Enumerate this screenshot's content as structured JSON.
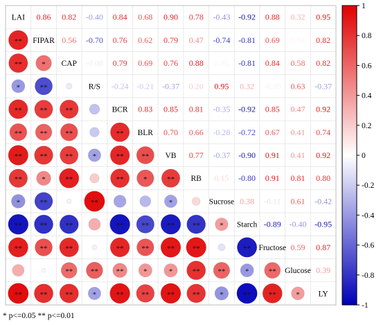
{
  "chart_data": {
    "type": "heatmap",
    "subtype": "mixed-correlation-matrix",
    "variables": [
      "LAI",
      "FIPAR",
      "CAP",
      "R/S",
      "BCR",
      "BLR",
      "VB",
      "RB",
      "Sucrose",
      "Starch",
      "Fructose",
      "Glucose",
      "LY"
    ],
    "upper_triangle": "coefficient values (colored text)",
    "lower_triangle": "circles sized and colored by coefficient, with significance stars",
    "matrix": [
      [
        1,
        0.86,
        0.82,
        -0.4,
        0.84,
        0.68,
        0.9,
        0.78,
        -0.43,
        -0.92,
        0.88,
        0.32,
        0.95
      ],
      [
        0.86,
        1,
        0.56,
        -0.7,
        0.76,
        0.62,
        0.79,
        0.47,
        -0.74,
        -0.81,
        0.69,
        0.04,
        0.82
      ],
      [
        0.82,
        0.56,
        1,
        -0.08,
        0.79,
        0.69,
        0.76,
        0.88,
        0.05,
        -0.81,
        0.84,
        0.58,
        0.82
      ],
      [
        -0.4,
        -0.7,
        -0.08,
        1,
        -0.24,
        -0.21,
        -0.37,
        0.2,
        0.95,
        0.32,
        -0.05,
        0.63,
        -0.37
      ],
      [
        0.84,
        0.76,
        0.79,
        -0.24,
        1,
        0.83,
        0.85,
        0.81,
        -0.35,
        -0.92,
        0.85,
        0.47,
        0.92
      ],
      [
        0.68,
        0.62,
        0.69,
        -0.21,
        0.83,
        1,
        0.7,
        0.66,
        -0.28,
        -0.72,
        0.67,
        0.41,
        0.74
      ],
      [
        0.9,
        0.79,
        0.76,
        -0.37,
        0.85,
        0.7,
        1,
        0.77,
        -0.37,
        -0.9,
        0.91,
        0.41,
        0.92
      ],
      [
        0.78,
        0.47,
        0.88,
        0.2,
        0.81,
        0.66,
        0.77,
        1,
        0.15,
        -0.8,
        0.91,
        0.81,
        0.8
      ],
      [
        -0.43,
        -0.74,
        0.05,
        0.95,
        -0.35,
        -0.28,
        -0.37,
        0.15,
        1,
        0.38,
        -0.11,
        0.61,
        -0.42
      ],
      [
        -0.92,
        -0.81,
        -0.81,
        0.32,
        -0.92,
        -0.72,
        -0.9,
        -0.8,
        0.38,
        1,
        -0.89,
        -0.4,
        -0.95
      ],
      [
        0.88,
        0.69,
        0.84,
        -0.05,
        0.85,
        0.67,
        0.91,
        0.91,
        -0.11,
        -0.89,
        1,
        0.59,
        0.87
      ],
      [
        0.32,
        0.04,
        0.58,
        0.63,
        0.47,
        0.41,
        0.41,
        0.81,
        0.61,
        -0.4,
        0.59,
        1,
        0.39
      ],
      [
        0.95,
        0.82,
        0.82,
        -0.37,
        0.92,
        0.74,
        0.92,
        0.8,
        -0.42,
        -0.95,
        0.87,
        0.39,
        1
      ]
    ],
    "upper_labels": [
      [
        null,
        "0.86",
        "0.82",
        "-0.40",
        "0.84",
        "0.68",
        "0.90",
        "0.78",
        "-0.43",
        "-0.92",
        "0.88",
        "0.32",
        "0.95"
      ],
      [
        null,
        null,
        "0.56",
        "-0.70",
        "0.76",
        "0.62",
        "0.79",
        "0.47",
        "-0.74",
        "-0.81",
        "0.69",
        "0.04",
        "0.82"
      ],
      [
        null,
        null,
        null,
        "-0.08",
        "0.79",
        "0.69",
        "0.76",
        "0.88",
        "0.05",
        "-0.81",
        "0.84",
        "0.58",
        "0.82"
      ],
      [
        null,
        null,
        null,
        null,
        "-0.24",
        "-0.21",
        "-0.37",
        "0.20",
        "0.95",
        "0.32",
        "-0.05",
        "0.63",
        "-0.37"
      ],
      [
        null,
        null,
        null,
        null,
        null,
        "0.83",
        "0.85",
        "0.81",
        "-0.35",
        "-0.92",
        "0.85",
        "0.47",
        "0.92"
      ],
      [
        null,
        null,
        null,
        null,
        null,
        null,
        "0.70",
        "0.66",
        "-0.28",
        "-0.72",
        "0.67",
        "0.41",
        "0.74"
      ],
      [
        null,
        null,
        null,
        null,
        null,
        null,
        null,
        "0.77",
        "-0.37",
        "-0.90",
        "0.91",
        "0.41",
        "0.92"
      ],
      [
        null,
        null,
        null,
        null,
        null,
        null,
        null,
        null,
        "0.15",
        "-0.80",
        "0.91",
        "0.81",
        "0.80"
      ],
      [
        null,
        null,
        null,
        null,
        null,
        null,
        null,
        null,
        null,
        "0.38",
        "-0.11",
        "0.61",
        "-0.42"
      ],
      [
        null,
        null,
        null,
        null,
        null,
        null,
        null,
        null,
        null,
        null,
        "-0.89",
        "-0.40",
        "-0.95"
      ],
      [
        null,
        null,
        null,
        null,
        null,
        null,
        null,
        null,
        null,
        null,
        null,
        "0.59",
        "0.87"
      ],
      [
        null,
        null,
        null,
        null,
        null,
        null,
        null,
        null,
        null,
        null,
        null,
        null,
        "0.39"
      ],
      [
        null,
        null,
        null,
        null,
        null,
        null,
        null,
        null,
        null,
        null,
        null,
        null,
        null
      ]
    ],
    "significance": [
      [
        "",
        "",
        "",
        "",
        "",
        "",
        "",
        "",
        "",
        "",
        "",
        "",
        ""
      ],
      [
        "**",
        "",
        "",
        "",
        "",
        "",
        "",
        "",
        "",
        "",
        "",
        "",
        ""
      ],
      [
        "**",
        "*",
        "",
        "",
        "",
        "",
        "",
        "",
        "",
        "",
        "",
        "",
        ""
      ],
      [
        "*",
        "**",
        "",
        "",
        "",
        "",
        "",
        "",
        "",
        "",
        "",
        "",
        ""
      ],
      [
        "**",
        "**",
        "**",
        "",
        "",
        "",
        "",
        "",
        "",
        "",
        "",
        "",
        ""
      ],
      [
        "**",
        "**",
        "**",
        "",
        "**",
        "",
        "",
        "",
        "",
        "",
        "",
        "",
        ""
      ],
      [
        "**",
        "**",
        "**",
        "*",
        "**",
        "**",
        "",
        "",
        "",
        "",
        "",
        "",
        ""
      ],
      [
        "**",
        "*",
        "**",
        "",
        "**",
        "*",
        "**",
        "",
        "",
        "",
        "",
        "",
        ""
      ],
      [
        "*",
        "**",
        "",
        "**",
        "",
        "",
        "*",
        "",
        "",
        "",
        "",
        "",
        ""
      ],
      [
        "**",
        "**",
        "**",
        "",
        "**",
        "**",
        "**",
        "**",
        "*",
        "",
        "",
        "",
        ""
      ],
      [
        "**",
        "**",
        "**",
        "",
        "**",
        "**",
        "**",
        "**",
        "",
        "**",
        "",
        "",
        ""
      ],
      [
        "",
        "",
        "**",
        "**",
        "**",
        "*",
        "*",
        "**",
        "**",
        "*",
        "**",
        "",
        ""
      ],
      [
        "**",
        "**",
        "**",
        "*",
        "**",
        "**",
        "**",
        "**",
        "*",
        "**",
        "**",
        "*",
        ""
      ]
    ],
    "colorbar": {
      "min": -1,
      "max": 1,
      "ticks": [
        "1",
        "0.8",
        "0.6",
        "0.4",
        "0.2",
        "0",
        "-0.2",
        "-0.4",
        "-0.6",
        "-0.8",
        "-1"
      ]
    },
    "colors": {
      "positive": "#E00000",
      "negative": "#0000B8",
      "neutral": "#FFFFFF"
    },
    "footnote": "* p<=0.05  ** p<=0.01"
  }
}
